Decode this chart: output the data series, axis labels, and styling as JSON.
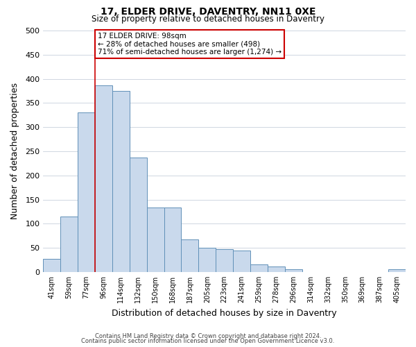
{
  "title": "17, ELDER DRIVE, DAVENTRY, NN11 0XE",
  "subtitle": "Size of property relative to detached houses in Daventry",
  "xlabel": "Distribution of detached houses by size in Daventry",
  "ylabel": "Number of detached properties",
  "bar_color": "#c9d9ec",
  "bar_edge_color": "#6090b8",
  "categories": [
    "41sqm",
    "59sqm",
    "77sqm",
    "96sqm",
    "114sqm",
    "132sqm",
    "150sqm",
    "168sqm",
    "187sqm",
    "205sqm",
    "223sqm",
    "241sqm",
    "259sqm",
    "278sqm",
    "296sqm",
    "314sqm",
    "332sqm",
    "350sqm",
    "369sqm",
    "387sqm",
    "405sqm"
  ],
  "values": [
    27,
    115,
    330,
    387,
    375,
    237,
    133,
    133,
    68,
    50,
    47,
    45,
    15,
    12,
    5,
    0,
    0,
    0,
    0,
    0,
    6
  ],
  "ylim": [
    0,
    500
  ],
  "yticks": [
    0,
    50,
    100,
    150,
    200,
    250,
    300,
    350,
    400,
    450,
    500
  ],
  "property_line_idx": 3,
  "annotation_title": "17 ELDER DRIVE: 98sqm",
  "annotation_line1": "← 28% of detached houses are smaller (498)",
  "annotation_line2": "71% of semi-detached houses are larger (1,274) →",
  "footer_line1": "Contains HM Land Registry data © Crown copyright and database right 2024.",
  "footer_line2": "Contains public sector information licensed under the Open Government Licence v3.0.",
  "bg_color": "#ffffff",
  "grid_color": "#c8d0dc",
  "annotation_box_edge_color": "#cc0000",
  "vline_color": "#cc0000"
}
